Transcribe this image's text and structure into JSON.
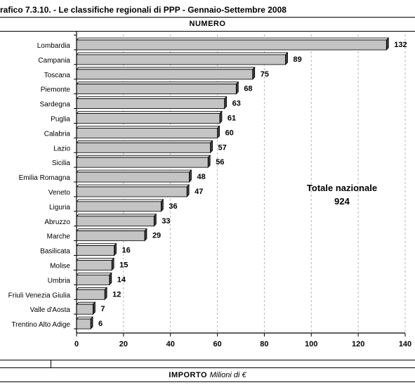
{
  "header": {
    "title": "rafico 7.3.10. - Le classifiche regionali di PPP - Gennaio-Settembre 2008",
    "section_top": "NUMERO",
    "section_bottom": "IMPORTO",
    "section_bottom_unit": "Milioni di €"
  },
  "annotation": {
    "label": "Totale nazionale",
    "value": "924"
  },
  "chart_data": {
    "type": "bar",
    "orientation": "horizontal",
    "categories": [
      "Lombardia",
      "Campania",
      "Toscana",
      "Piemonte",
      "Sardegna",
      "Puglia",
      "Calabria",
      "Lazio",
      "Sicilia",
      "Emilia Romagna",
      "Veneto",
      "Liguria",
      "Abruzzo",
      "Marche",
      "Basilicata",
      "Molise",
      "Umbria",
      "Friuli Venezia Giulia",
      "Valle d'Aosta",
      "Trentino Alto Adige"
    ],
    "values": [
      132,
      89,
      75,
      68,
      63,
      61,
      60,
      57,
      56,
      48,
      47,
      36,
      33,
      29,
      16,
      15,
      14,
      12,
      7,
      6
    ],
    "xlim": [
      0,
      140
    ],
    "xticks": [
      0,
      20,
      40,
      60,
      80,
      100,
      120,
      140
    ],
    "grid": "vertical dashed",
    "colors": {
      "bar_face": "#c4c4c4",
      "bar_side": "#3a3a3a",
      "bar_top": "#e8e8e8",
      "grid": "#b5b5b5"
    }
  }
}
